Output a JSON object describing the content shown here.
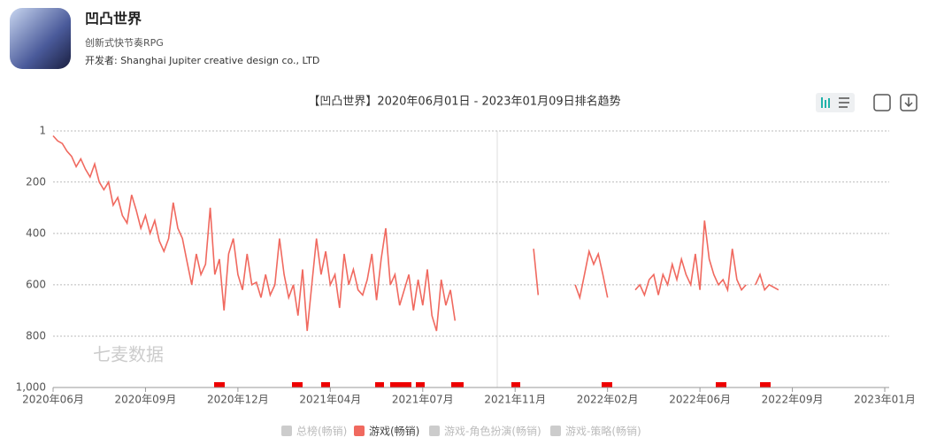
{
  "app": {
    "name": "凹凸世界",
    "subtitle": "创新式快节奏RPG",
    "developer": "开发者: Shanghai Jupiter creative design co., LTD"
  },
  "chart_data": {
    "type": "line",
    "title": "【凹凸世界】2020年06月01日 - 2023年01月09日排名趋势",
    "watermark": "七麦数据",
    "ylim": [
      1,
      1000
    ],
    "y_inverted": true,
    "yticks": [
      1,
      200,
      400,
      600,
      800,
      {
        "value": 1000,
        "label": "1,000"
      }
    ],
    "xlim": [
      0,
      180
    ],
    "xticks": [
      {
        "value": 0,
        "label": "2020年06月"
      },
      {
        "value": 20,
        "label": "2020年09月"
      },
      {
        "value": 40,
        "label": "2020年12月"
      },
      {
        "value": 60,
        "label": "2021年04月"
      },
      {
        "value": 80,
        "label": "2021年07月"
      },
      {
        "value": 100,
        "label": "2021年11月"
      },
      {
        "value": 120,
        "label": "2022年02月"
      },
      {
        "value": 140,
        "label": "2022年06月"
      },
      {
        "value": 160,
        "label": "2022年09月"
      },
      {
        "value": 180,
        "label": "2023年01月"
      }
    ],
    "grid": true,
    "series": [
      {
        "name": "游戏(畅销)",
        "color": "#f0695f",
        "values": [
          20,
          40,
          50,
          80,
          100,
          140,
          110,
          150,
          180,
          130,
          200,
          230,
          200,
          290,
          260,
          330,
          360,
          250,
          310,
          380,
          330,
          400,
          350,
          430,
          470,
          420,
          280,
          380,
          420,
          510,
          600,
          480,
          560,
          520,
          300,
          560,
          500,
          700,
          480,
          420,
          560,
          620,
          480,
          600,
          590,
          650,
          560,
          640,
          600,
          420,
          560,
          650,
          600,
          720,
          540,
          780,
          600,
          420,
          560,
          470,
          600,
          560,
          690,
          480,
          600,
          540,
          620,
          640,
          580,
          480,
          660,
          500,
          380,
          600,
          560,
          680,
          620,
          560,
          700,
          580,
          680,
          540,
          720,
          780,
          580,
          680,
          620,
          740,
          null,
          null,
          null,
          null,
          null,
          null,
          null,
          null,
          null,
          null,
          null,
          null,
          null,
          null,
          null,
          null,
          460,
          640,
          null,
          null,
          null,
          null,
          null,
          null,
          null,
          600,
          650,
          560,
          470,
          520,
          480,
          560,
          650,
          null,
          null,
          null,
          null,
          null,
          620,
          600,
          640,
          580,
          560,
          640,
          560,
          600,
          520,
          580,
          500,
          560,
          600,
          480,
          620,
          350,
          500,
          560,
          600,
          580,
          620,
          460,
          580,
          620,
          600,
          null,
          600,
          560,
          620,
          600,
          610,
          620
        ]
      }
    ],
    "inactive_legend": [
      "总榜(畅销)",
      "游戏-角色扮演(畅销)",
      "游戏-策略(畅销)"
    ],
    "inactive_color": "#cccccc"
  }
}
